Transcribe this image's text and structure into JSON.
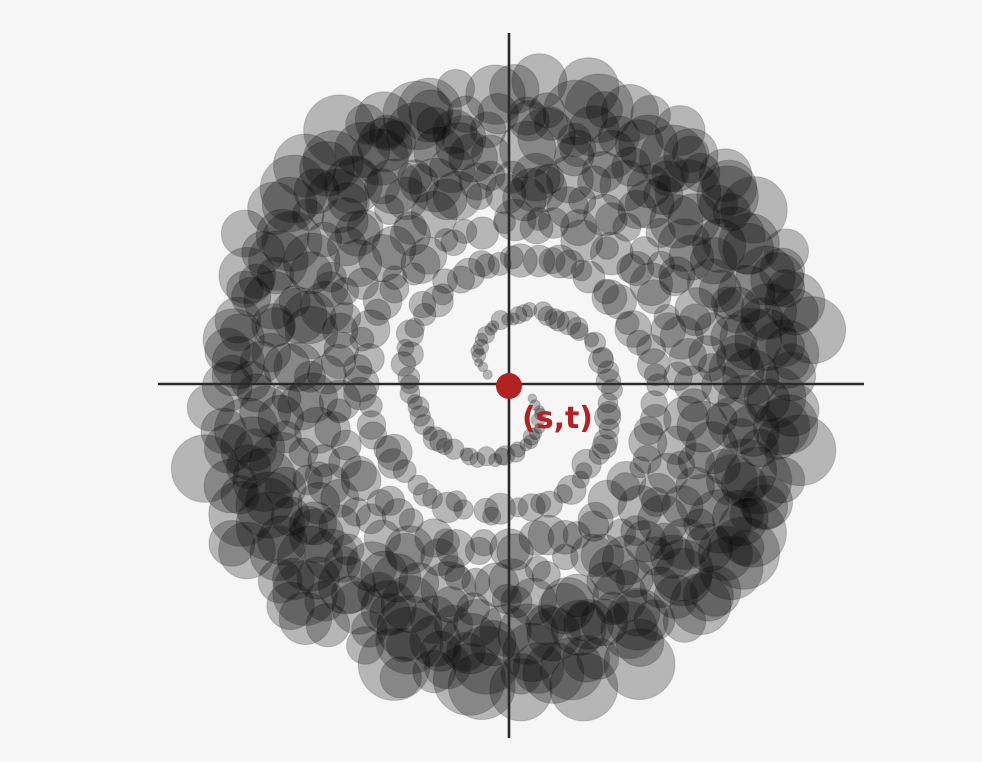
{
  "origin_label": "(s,t)",
  "colors": {
    "background": "#f6f6f6",
    "axes": "#2b2b2b",
    "origin": "#b22222",
    "disks": "#000000"
  },
  "disk_opacity": 0.26,
  "pattern": {
    "spiral_arms": 2,
    "samples_per_arm": 300,
    "turns": 4.4
  }
}
